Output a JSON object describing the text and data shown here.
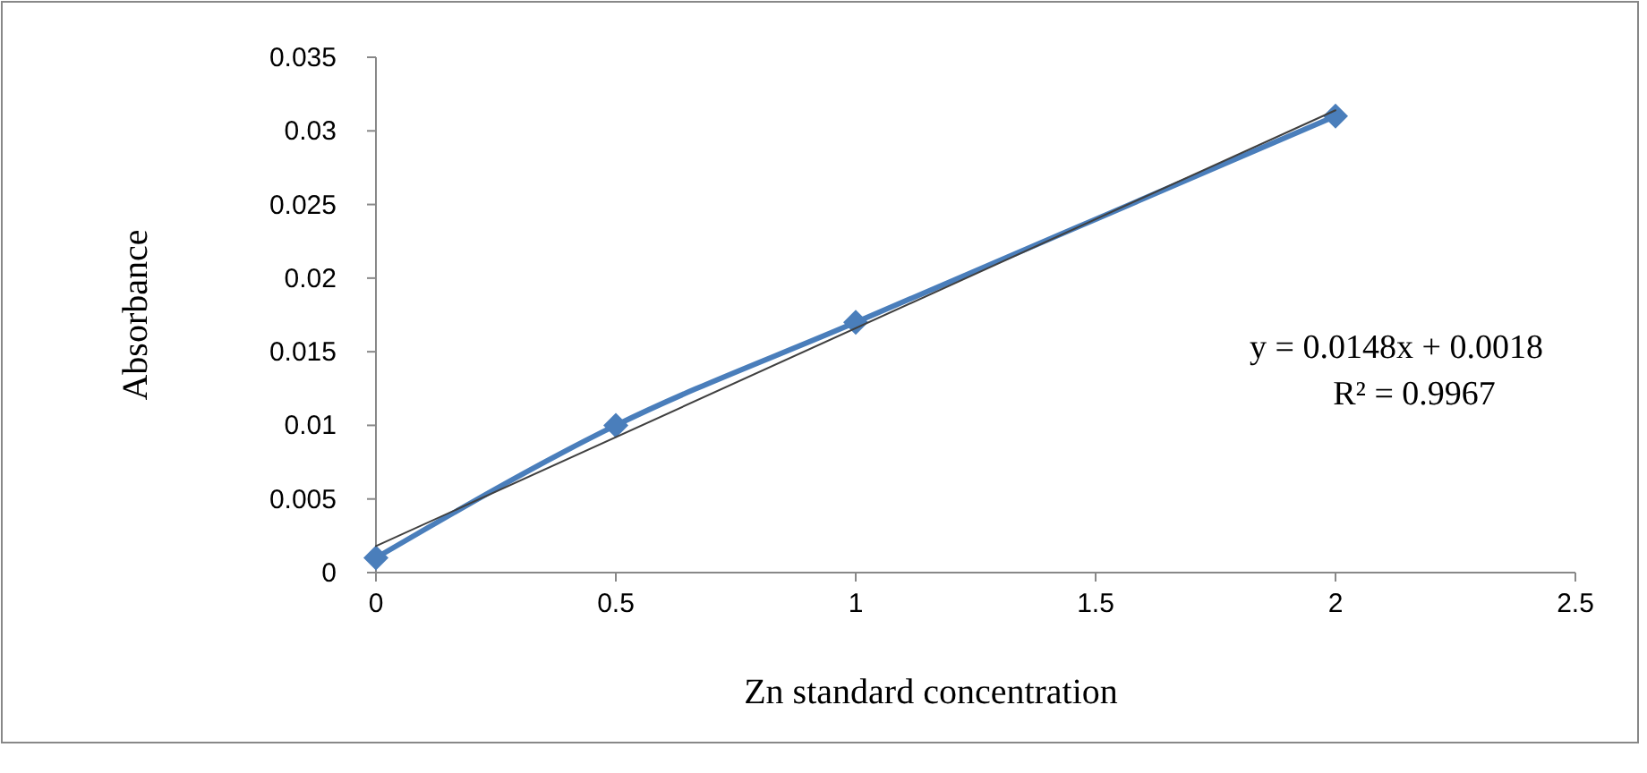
{
  "chart_data": {
    "type": "line",
    "xlabel": "Zn standard concentration",
    "ylabel": "Absorbance",
    "x": [
      0,
      0.5,
      1,
      2
    ],
    "series": [
      {
        "color": "#4a7ebb",
        "values": [
          0.001,
          0.01,
          0.017,
          0.031
        ],
        "marker": "diamond"
      },
      {
        "type": "line",
        "color": "#404040",
        "x": [
          0,
          2
        ],
        "values": [
          0.0018,
          0.0314
        ],
        "marker": "none"
      }
    ],
    "xlim": [
      0,
      2.5
    ],
    "xticks": [
      0,
      0.5,
      1,
      1.5,
      2,
      2.5
    ],
    "ylim": [
      0,
      0.035
    ],
    "yticks": [
      0,
      0.005,
      0.01,
      0.015,
      0.02,
      0.025,
      0.03,
      0.035
    ],
    "grid": false,
    "annotations": [
      "y = 0.0148x + 0.0018",
      "R² = 0.9967"
    ]
  }
}
